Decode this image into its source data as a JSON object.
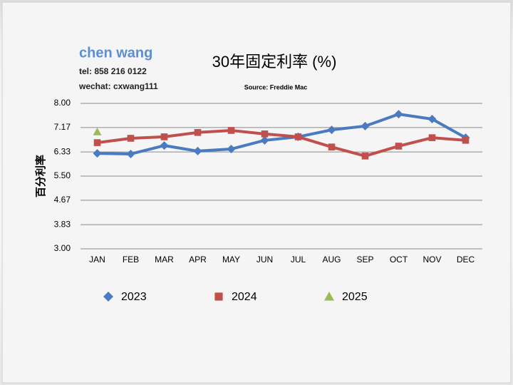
{
  "header": {
    "name": "chen wang",
    "tel": "tel: 858 216 0122",
    "wechat": "wechat: cxwang111"
  },
  "chart_data": {
    "type": "line",
    "title": "30年固定利率 (%)",
    "subtitle": "Source: Freddie Mac",
    "y_label": "百分利率",
    "categories": [
      "JAN",
      "FEB",
      "MAR",
      "APR",
      "MAY",
      "JUN",
      "JUL",
      "AUG",
      "SEP",
      "OCT",
      "NOV",
      "DEC"
    ],
    "series": [
      {
        "name": "2023",
        "color": "#4a7ac0",
        "marker": "diamond",
        "values": [
          6.28,
          6.26,
          6.55,
          6.36,
          6.43,
          6.73,
          6.85,
          7.09,
          7.22,
          7.63,
          7.46,
          6.82
        ]
      },
      {
        "name": "2024",
        "color": "#c0504d",
        "marker": "square",
        "values": [
          6.65,
          6.8,
          6.85,
          7.0,
          7.07,
          6.95,
          6.85,
          6.5,
          6.19,
          6.53,
          6.82,
          6.73
        ]
      },
      {
        "name": "2025",
        "color": "#9bbb59",
        "marker": "triangle",
        "values": [
          7.02,
          null,
          null,
          null,
          null,
          null,
          null,
          null,
          null,
          null,
          null,
          null
        ]
      }
    ],
    "ylim": [
      3,
      8
    ],
    "yticks": [
      {
        "value": 3,
        "label": "3.00"
      },
      {
        "value": 3.83,
        "label": "3.83"
      },
      {
        "value": 4.67,
        "label": "4.67"
      },
      {
        "value": 5.5,
        "label": "5.50"
      },
      {
        "value": 6.33,
        "label": "6.33"
      },
      {
        "value": 7.17,
        "label": "7.17"
      },
      {
        "value": 8,
        "label": "8.00"
      }
    ],
    "grid": true,
    "legend": "bottom"
  }
}
